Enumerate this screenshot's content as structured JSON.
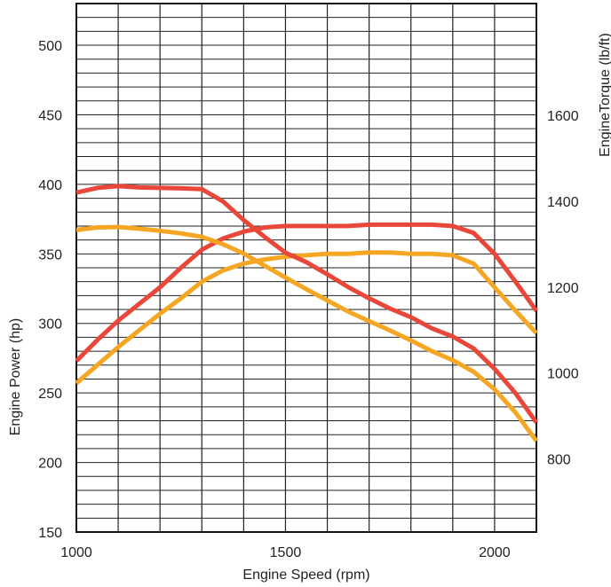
{
  "chart_data": {
    "type": "line",
    "xlabel": "Engine Speed (rpm)",
    "ylabel_left": "Engine Power (hp)",
    "ylabel_right": "EngineTorque (lb/ft)",
    "xlim": [
      1000,
      2100
    ],
    "ylim_left": [
      150,
      530
    ],
    "ylim_right": [
      630,
      1860
    ],
    "x_ticks": [
      1000,
      1500,
      2000
    ],
    "y_ticks_left": [
      150,
      200,
      250,
      300,
      350,
      400,
      450,
      500
    ],
    "y_ticks_right": [
      800,
      1000,
      1200,
      1400,
      1600
    ],
    "grid": true,
    "series": [
      {
        "axis": "left",
        "color": "#e8473a",
        "x": [
          1000,
          1050,
          1100,
          1150,
          1200,
          1250,
          1300,
          1350,
          1400,
          1450,
          1500,
          1550,
          1600,
          1650,
          1700,
          1750,
          1800,
          1850,
          1900,
          1950,
          2000,
          2050,
          2100
        ],
        "y": [
          273,
          288,
          302,
          314,
          326,
          340,
          353,
          361,
          366,
          369,
          370,
          370,
          370,
          370,
          371,
          371,
          371,
          371,
          370,
          365,
          350,
          330,
          309
        ]
      },
      {
        "axis": "left",
        "color": "#f5a623",
        "x": [
          1000,
          1050,
          1100,
          1150,
          1200,
          1250,
          1300,
          1350,
          1400,
          1450,
          1500,
          1550,
          1600,
          1650,
          1700,
          1750,
          1800,
          1850,
          1900,
          1950,
          2000,
          2050,
          2100
        ],
        "y": [
          257,
          270,
          283,
          295,
          307,
          318,
          330,
          338,
          343,
          346,
          348,
          349,
          350,
          350,
          351,
          351,
          350,
          350,
          349,
          343,
          326,
          309,
          293
        ]
      },
      {
        "axis": "right",
        "color": "#e8473a",
        "x": [
          1000,
          1050,
          1100,
          1150,
          1200,
          1250,
          1300,
          1350,
          1400,
          1450,
          1500,
          1550,
          1600,
          1650,
          1700,
          1750,
          1800,
          1850,
          1900,
          1950,
          2000,
          2050,
          2100
        ],
        "y": [
          1420,
          1431,
          1435,
          1432,
          1431,
          1430,
          1428,
          1400,
          1356,
          1317,
          1280,
          1258,
          1230,
          1200,
          1174,
          1150,
          1130,
          1104,
          1085,
          1057,
          1010,
          953,
          885
        ]
      },
      {
        "axis": "right",
        "color": "#f5a623",
        "x": [
          1000,
          1050,
          1100,
          1150,
          1200,
          1250,
          1300,
          1350,
          1400,
          1450,
          1500,
          1550,
          1600,
          1650,
          1700,
          1750,
          1800,
          1850,
          1900,
          1950,
          2000,
          2050,
          2100
        ],
        "y": [
          1333,
          1339,
          1340,
          1336,
          1331,
          1325,
          1317,
          1300,
          1278,
          1250,
          1222,
          1195,
          1169,
          1143,
          1121,
          1099,
          1076,
          1051,
          1030,
          1003,
          962,
          908,
          842
        ]
      }
    ]
  }
}
